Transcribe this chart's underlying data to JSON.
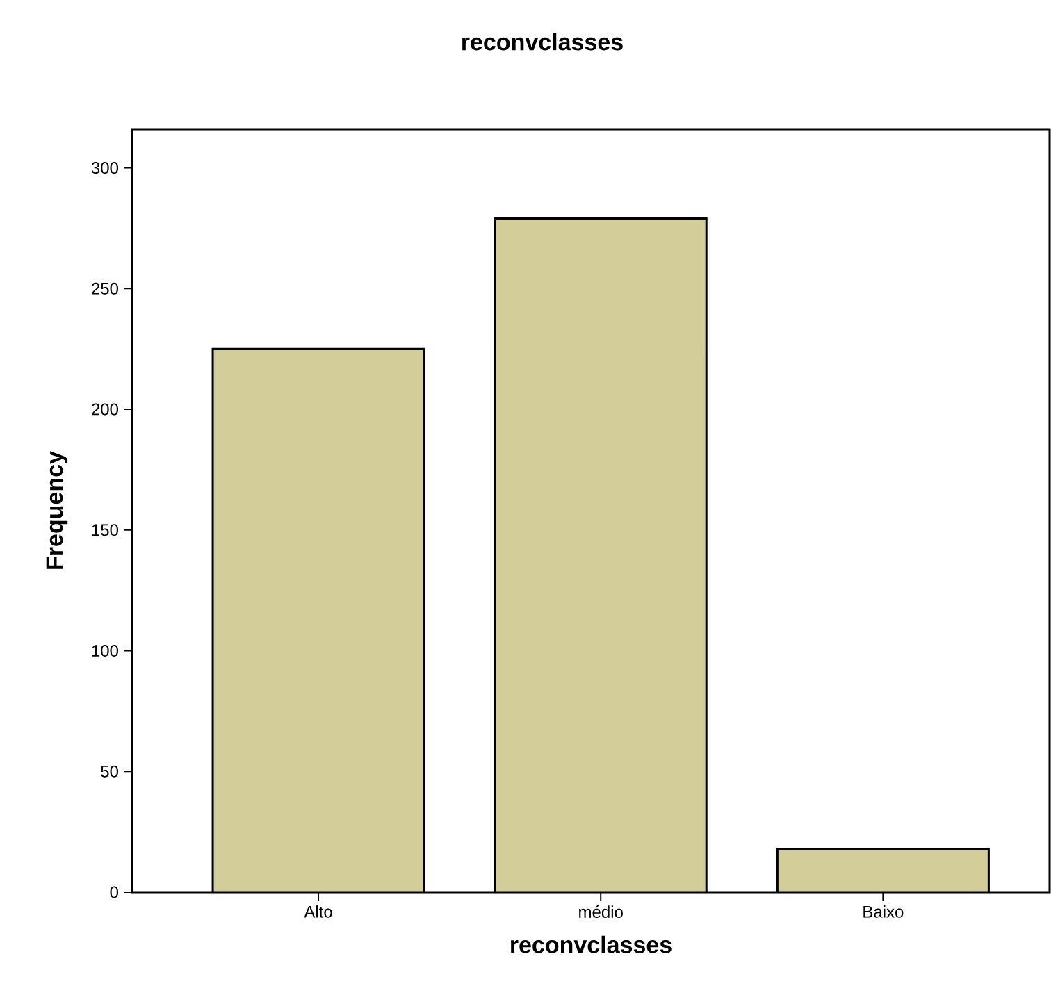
{
  "chart_data": {
    "type": "bar",
    "title": "reconvclasses",
    "xlabel": "reconvclasses",
    "ylabel": "Frequency",
    "categories": [
      "Alto",
      "médio",
      "Baixo"
    ],
    "values": [
      225,
      279,
      18
    ],
    "color": "#d3ce99",
    "ylim": [
      0,
      316
    ],
    "yticks": [
      0,
      50,
      100,
      150,
      200,
      250,
      300
    ]
  }
}
